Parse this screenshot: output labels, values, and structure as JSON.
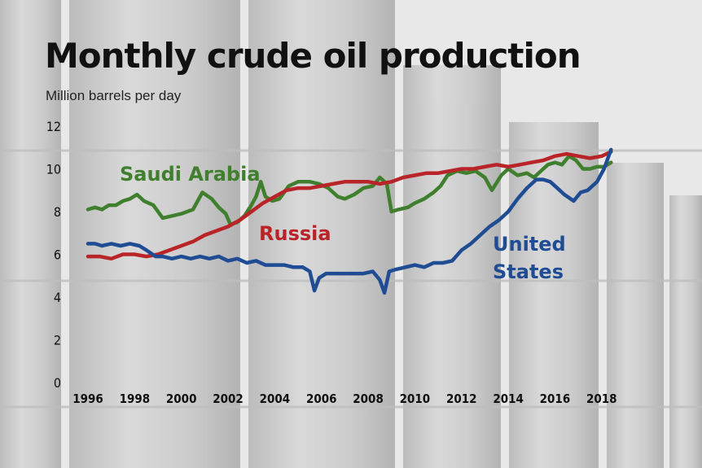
{
  "title": "Monthly crude oil production",
  "subtitle": "Million barrels per day",
  "colors": {
    "saudi": "#3f7f2e",
    "russia": "#b82428",
    "us": "#1f4c93"
  },
  "chart_data": {
    "type": "line",
    "title": "Monthly crude oil production",
    "ylabel": "Million barrels per day",
    "xlim": [
      1996,
      2018.6
    ],
    "ylim": [
      0,
      12
    ],
    "yticks": [
      0,
      2,
      4,
      6,
      8,
      10,
      12
    ],
    "xticks": [
      1996,
      1998,
      2000,
      2002,
      2004,
      2006,
      2008,
      2010,
      2012,
      2014,
      2016,
      2018
    ],
    "grid": false,
    "legend": "inline labels",
    "series": [
      {
        "name": "Saudi Arabia",
        "key": "saudi",
        "x": [
          1996.0,
          1996.3,
          1996.6,
          1996.9,
          1997.2,
          1997.5,
          1997.8,
          1998.1,
          1998.4,
          1998.8,
          1999.2,
          1999.6,
          2000.0,
          2000.5,
          2000.9,
          2001.3,
          2001.6,
          2001.9,
          2002.1,
          2002.4,
          2002.7,
          2003.0,
          2003.2,
          2003.4,
          2003.6,
          2003.9,
          2004.2,
          2004.6,
          2005.0,
          2005.5,
          2005.9,
          2006.3,
          2006.7,
          2007.0,
          2007.4,
          2007.8,
          2008.2,
          2008.5,
          2008.8,
          2009.0,
          2009.3,
          2009.7,
          2010.0,
          2010.4,
          2010.8,
          2011.1,
          2011.4,
          2011.8,
          2012.2,
          2012.6,
          2013.0,
          2013.3,
          2013.7,
          2014.0,
          2014.4,
          2014.8,
          2015.1,
          2015.4,
          2015.7,
          2016.0,
          2016.3,
          2016.6,
          2016.9,
          2017.2,
          2017.5,
          2017.8,
          2018.1,
          2018.4
        ],
        "values": [
          8.1,
          8.2,
          8.1,
          8.3,
          8.3,
          8.5,
          8.6,
          8.8,
          8.5,
          8.3,
          7.7,
          7.8,
          7.9,
          8.1,
          8.9,
          8.6,
          8.2,
          7.9,
          7.4,
          7.5,
          7.8,
          8.3,
          8.7,
          9.4,
          8.7,
          8.5,
          8.6,
          9.2,
          9.4,
          9.4,
          9.3,
          9.1,
          8.7,
          8.6,
          8.8,
          9.1,
          9.2,
          9.6,
          9.3,
          8.0,
          8.1,
          8.2,
          8.4,
          8.6,
          8.9,
          9.2,
          9.7,
          9.9,
          9.8,
          9.9,
          9.6,
          9.0,
          9.7,
          10.0,
          9.7,
          9.8,
          9.6,
          9.9,
          10.2,
          10.3,
          10.2,
          10.6,
          10.4,
          10.0,
          10.0,
          10.1,
          10.1,
          10.3
        ]
      },
      {
        "name": "Russia",
        "key": "russia",
        "x": [
          1996.0,
          1996.5,
          1997.0,
          1997.5,
          1998.0,
          1998.5,
          1999.0,
          1999.5,
          2000.0,
          2000.5,
          2001.0,
          2001.5,
          2002.0,
          2002.5,
          2003.0,
          2003.5,
          2004.0,
          2004.5,
          2005.0,
          2005.5,
          2006.0,
          2006.5,
          2007.0,
          2007.5,
          2008.0,
          2008.5,
          2009.0,
          2009.5,
          2010.0,
          2010.5,
          2011.0,
          2011.5,
          2012.0,
          2012.5,
          2013.0,
          2013.5,
          2014.0,
          2014.5,
          2015.0,
          2015.5,
          2016.0,
          2016.5,
          2017.0,
          2017.5,
          2018.0,
          2018.4
        ],
        "values": [
          5.9,
          5.9,
          5.8,
          6.0,
          6.0,
          5.9,
          6.0,
          6.2,
          6.4,
          6.6,
          6.9,
          7.1,
          7.3,
          7.6,
          8.0,
          8.4,
          8.7,
          9.0,
          9.1,
          9.1,
          9.2,
          9.3,
          9.4,
          9.4,
          9.4,
          9.3,
          9.4,
          9.6,
          9.7,
          9.8,
          9.8,
          9.9,
          10.0,
          10.0,
          10.1,
          10.2,
          10.1,
          10.2,
          10.3,
          10.4,
          10.6,
          10.7,
          10.6,
          10.5,
          10.6,
          10.8
        ]
      },
      {
        "name": "United States",
        "key": "us",
        "x": [
          1996.0,
          1996.3,
          1996.6,
          1997.0,
          1997.4,
          1997.8,
          1998.2,
          1998.5,
          1998.9,
          1999.2,
          1999.6,
          2000.0,
          2000.4,
          2000.8,
          2001.2,
          2001.6,
          2002.0,
          2002.4,
          2002.8,
          2003.2,
          2003.6,
          2004.0,
          2004.4,
          2004.8,
          2005.2,
          2005.5,
          2005.7,
          2005.9,
          2006.2,
          2006.6,
          2007.0,
          2007.4,
          2007.8,
          2008.2,
          2008.5,
          2008.7,
          2008.9,
          2009.2,
          2009.6,
          2010.0,
          2010.4,
          2010.8,
          2011.2,
          2011.6,
          2012.0,
          2012.4,
          2012.8,
          2013.2,
          2013.6,
          2014.0,
          2014.4,
          2014.8,
          2015.2,
          2015.5,
          2015.8,
          2016.1,
          2016.4,
          2016.8,
          2017.1,
          2017.4,
          2017.8,
          2018.1,
          2018.4
        ],
        "values": [
          6.5,
          6.5,
          6.4,
          6.5,
          6.4,
          6.5,
          6.4,
          6.2,
          5.9,
          5.9,
          5.8,
          5.9,
          5.8,
          5.9,
          5.8,
          5.9,
          5.7,
          5.8,
          5.6,
          5.7,
          5.5,
          5.5,
          5.5,
          5.4,
          5.4,
          5.2,
          4.3,
          4.9,
          5.1,
          5.1,
          5.1,
          5.1,
          5.1,
          5.2,
          4.8,
          4.2,
          5.2,
          5.3,
          5.4,
          5.5,
          5.4,
          5.6,
          5.6,
          5.7,
          6.2,
          6.5,
          6.9,
          7.3,
          7.6,
          8.0,
          8.6,
          9.1,
          9.5,
          9.5,
          9.4,
          9.1,
          8.8,
          8.5,
          8.9,
          9.0,
          9.4,
          10.0,
          10.9
        ]
      }
    ],
    "labels": [
      {
        "series": "saudi",
        "lines": [
          "Saudi Arabia"
        ]
      },
      {
        "series": "russia",
        "lines": [
          "Russia"
        ]
      },
      {
        "series": "us",
        "lines": [
          "United",
          "States"
        ]
      }
    ]
  }
}
